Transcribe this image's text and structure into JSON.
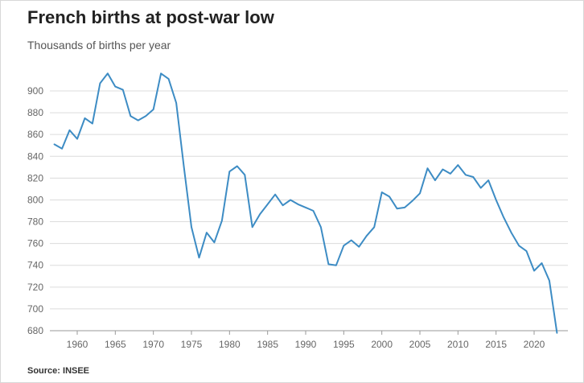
{
  "chart_data": {
    "type": "line",
    "title": "French births at post-war low",
    "subtitle": "Thousands of births per year",
    "source": "Source: INSEE",
    "xlabel": "",
    "ylabel": "",
    "xlim": [
      1957,
      2023
    ],
    "ylim": [
      680,
      920
    ],
    "x_ticks": [
      1960,
      1965,
      1970,
      1975,
      1980,
      1985,
      1990,
      1995,
      2000,
      2005,
      2010,
      2015,
      2020
    ],
    "y_ticks": [
      680,
      700,
      720,
      740,
      760,
      780,
      800,
      820,
      840,
      860,
      880,
      900
    ],
    "grid": true,
    "line_color": "#3d8cc4",
    "series": [
      {
        "x": [
          1957,
          1958,
          1959,
          1960,
          1961,
          1962,
          1963,
          1964,
          1965,
          1966,
          1967,
          1968,
          1969,
          1970,
          1971,
          1972,
          1973,
          1974,
          1975,
          1976,
          1977,
          1978,
          1979,
          1980,
          1981,
          1982,
          1983,
          1984,
          1985,
          1986,
          1987,
          1988,
          1989,
          1990,
          1991,
          1992,
          1993,
          1994,
          1995,
          1996,
          1997,
          1998,
          1999,
          2000,
          2001,
          2002,
          2003,
          2004,
          2005,
          2006,
          2007,
          2008,
          2009,
          2010,
          2011,
          2012,
          2013,
          2014,
          2015,
          2016,
          2017,
          2018,
          2019,
          2020,
          2021,
          2022,
          2023
        ],
        "values": [
          851,
          847,
          864,
          856,
          875,
          870,
          907,
          916,
          904,
          901,
          877,
          873,
          877,
          883,
          916,
          911,
          889,
          831,
          775,
          747,
          770,
          761,
          781,
          826,
          831,
          823,
          775,
          787,
          796,
          805,
          795,
          800,
          796,
          793,
          790,
          775,
          741,
          740,
          758,
          763,
          757,
          767,
          775,
          807,
          803,
          792,
          793,
          799,
          806,
          829,
          818,
          828,
          824,
          832,
          823,
          821,
          811,
          818,
          800,
          784,
          770,
          758,
          753,
          735,
          742,
          726,
          678
        ]
      }
    ]
  }
}
